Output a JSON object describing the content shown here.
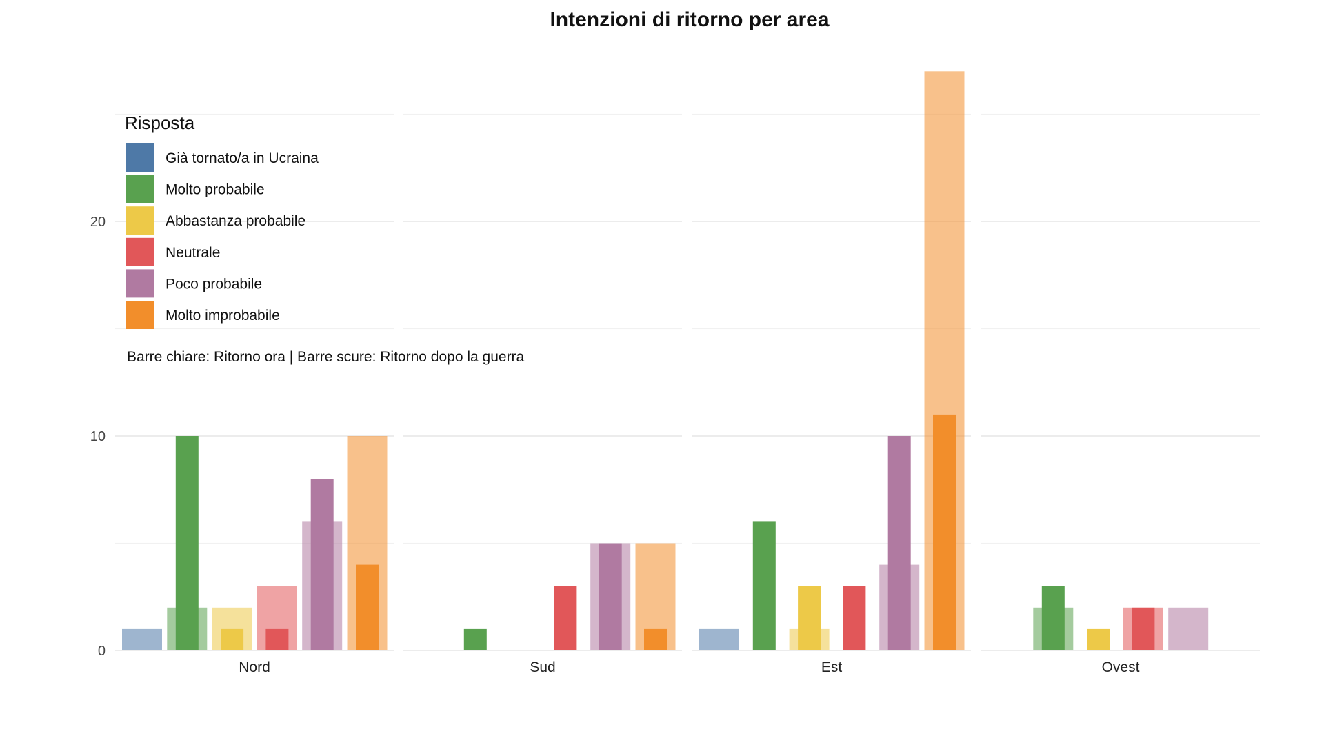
{
  "chart_data": {
    "type": "bar",
    "title": "Intenzioni di ritorno per area",
    "xlabel": "",
    "ylabel": "",
    "ylim": [
      0,
      27.4
    ],
    "yticks": [
      0,
      10,
      20
    ],
    "grid": true,
    "facets": [
      "Nord",
      "Sud",
      "Est",
      "Ovest"
    ],
    "legend": {
      "title": "Risposta",
      "placement": "top-left",
      "categories": [
        "Già tornato/a in Ucraina",
        "Molto probabile",
        "Abbastanza probabile",
        "Neutrale",
        "Poco probabile",
        "Molto improbabile"
      ],
      "colors": [
        "#4e79a7",
        "#59a14f",
        "#edc948",
        "#e15759",
        "#b07aa1",
        "#f28e2b"
      ]
    },
    "caption": "Barre chiare: Ritorno ora | Barre scure: Ritorno dopo la guerra",
    "series": [
      {
        "name": "Ritorno ora",
        "style": "light",
        "values": {
          "Nord": [
            1,
            2,
            2,
            3,
            6,
            10
          ],
          "Sud": [
            0,
            0,
            0,
            0,
            5,
            5
          ],
          "Est": [
            1,
            0,
            1,
            0,
            4,
            27
          ],
          "Ovest": [
            0,
            2,
            0,
            2,
            2,
            0
          ]
        }
      },
      {
        "name": "Ritorno dopo la guerra",
        "style": "dark",
        "values": {
          "Nord": [
            0,
            10,
            1,
            1,
            8,
            4
          ],
          "Sud": [
            0,
            1,
            0,
            3,
            5,
            1
          ],
          "Est": [
            0,
            6,
            3,
            3,
            10,
            11
          ],
          "Ovest": [
            0,
            3,
            1,
            2,
            0,
            0
          ]
        }
      }
    ]
  }
}
